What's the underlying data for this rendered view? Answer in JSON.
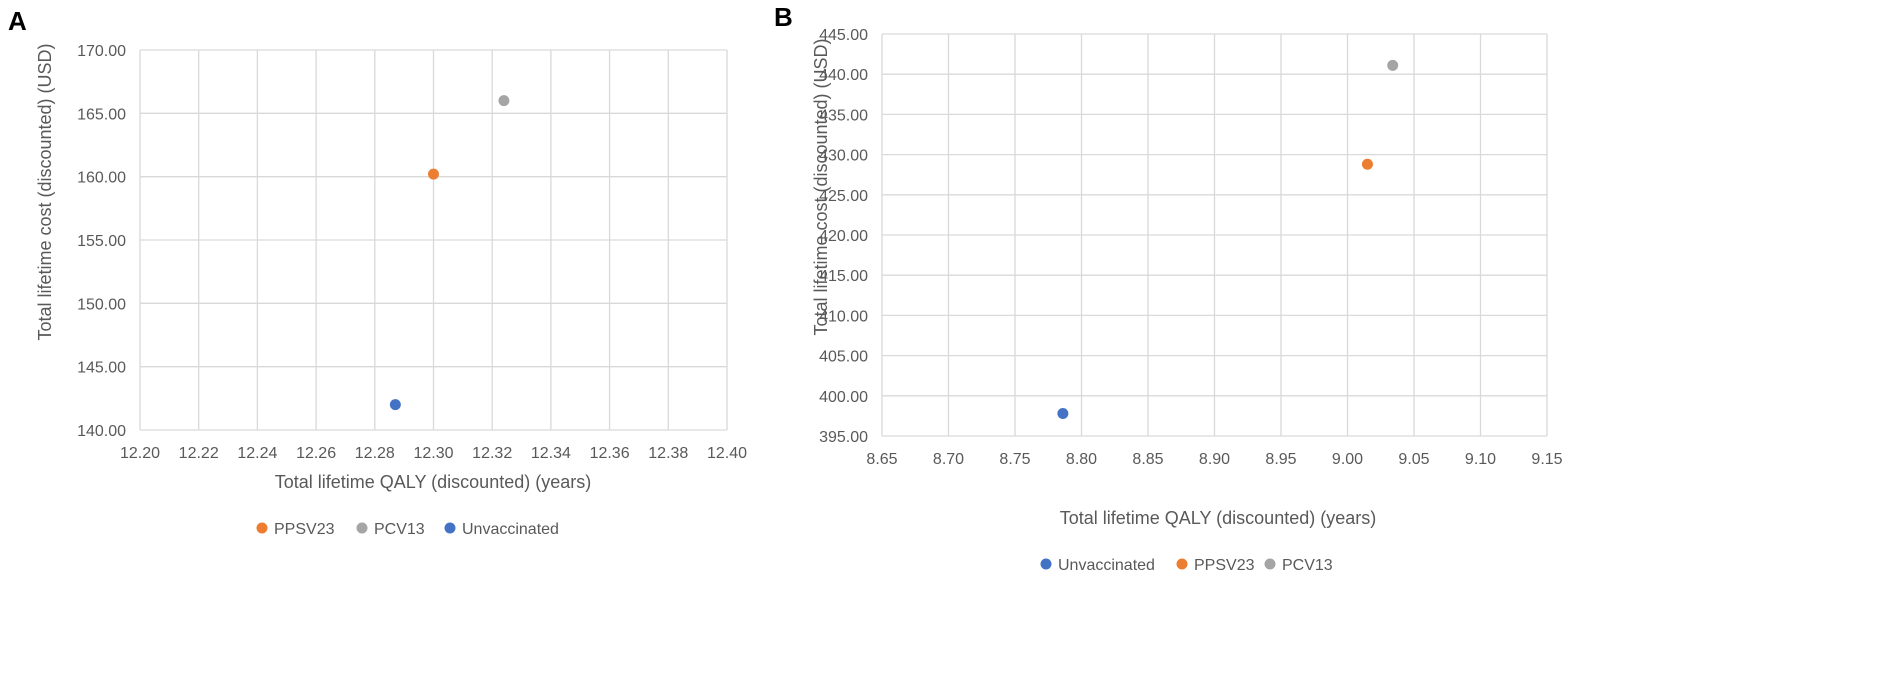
{
  "chart_data": [
    {
      "type": "scatter",
      "panel_label": "A",
      "xlabel": "Total lifetime QALY (discounted) (years)",
      "ylabel": "Total lifetime cost (discounted) (USD)",
      "xlim": [
        12.2,
        12.4
      ],
      "ylim": [
        140,
        170
      ],
      "x_ticks": [
        "12.20",
        "12.22",
        "12.24",
        "12.26",
        "12.28",
        "12.30",
        "12.32",
        "12.34",
        "12.36",
        "12.38",
        "12.40"
      ],
      "y_ticks": [
        "140.00",
        "145.00",
        "150.00",
        "155.00",
        "160.00",
        "165.00",
        "170.00"
      ],
      "grid": true,
      "legend_position": "bottom",
      "legend_order": [
        "PPSV23",
        "PCV13",
        "Unvaccinated"
      ],
      "series": [
        {
          "name": "PPSV23",
          "color": "#ed7d31",
          "x": 12.3,
          "y": 160.2
        },
        {
          "name": "PCV13",
          "color": "#a5a5a5",
          "x": 12.324,
          "y": 166.0
        },
        {
          "name": "Unvaccinated",
          "color": "#4472c4",
          "x": 12.287,
          "y": 142.0
        }
      ]
    },
    {
      "type": "scatter",
      "panel_label": "B",
      "xlabel": "Total lifetime QALY (discounted) (years)",
      "ylabel": "Total lifetime cost (discounted) (USD)",
      "xlim": [
        8.65,
        9.15
      ],
      "ylim": [
        395,
        445
      ],
      "x_ticks": [
        "8.65",
        "8.70",
        "8.75",
        "8.80",
        "8.85",
        "8.90",
        "8.95",
        "9.00",
        "9.05",
        "9.10",
        "9.15"
      ],
      "y_ticks": [
        "395.00",
        "400.00",
        "405.00",
        "410.00",
        "415.00",
        "420.00",
        "425.00",
        "430.00",
        "435.00",
        "440.00",
        "445.00"
      ],
      "grid": true,
      "legend_position": "bottom",
      "legend_order": [
        "Unvaccinated",
        "PPSV23",
        "PCV13"
      ],
      "series": [
        {
          "name": "Unvaccinated",
          "color": "#4472c4",
          "x": 8.786,
          "y": 397.8
        },
        {
          "name": "PPSV23",
          "color": "#ed7d31",
          "x": 9.015,
          "y": 428.8
        },
        {
          "name": "PCV13",
          "color": "#a5a5a5",
          "x": 9.034,
          "y": 441.1
        }
      ]
    }
  ]
}
